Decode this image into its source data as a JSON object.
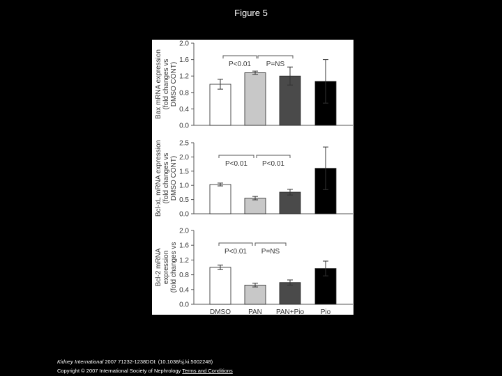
{
  "slide": {
    "title": "Figure 5",
    "citation": {
      "journal": "Kidney International",
      "rest": " 2007 71232-1238DOI: (10.1038/sj.ki.5002248)"
    },
    "copyright": "Copyright © 2007 International Society of Nephrology",
    "link": "Terms and Conditions"
  },
  "chart_data": [
    {
      "type": "bar",
      "ylabel": [
        "Bax mRNA expression",
        "(fold changes vs",
        "DMSO CONT)"
      ],
      "categories": [
        null,
        null,
        null,
        null
      ],
      "values": [
        1.0,
        1.28,
        1.2,
        1.07
      ],
      "errors": [
        0.12,
        0.04,
        0.22,
        0.53
      ],
      "colors": [
        "#ffffff",
        "#c8c8c8",
        "#4a4a4a",
        "#000000"
      ],
      "ylim": [
        0,
        2
      ],
      "yticks": [
        {
          "value": 0,
          "label": "0.0"
        },
        0.4,
        0.8,
        1.2,
        1.6,
        {
          "value": 2,
          "label": "2.0"
        }
      ],
      "annotations": [
        "P<0.01",
        "P=NS"
      ]
    },
    {
      "type": "bar",
      "ylabel": [
        "Bcl-xL mRNA expression",
        "(fold changes vs",
        "DMSO CONT)"
      ],
      "categories": [
        null,
        null,
        null,
        null
      ],
      "values": [
        1.03,
        0.55,
        0.76,
        1.6
      ],
      "errors": [
        0.05,
        0.06,
        0.1,
        0.75
      ],
      "colors": [
        "#ffffff",
        "#c8c8c8",
        "#4a4a4a",
        "#000000"
      ],
      "ylim": [
        0,
        2.5
      ],
      "yticks": [
        {
          "value": 0,
          "label": "0.0"
        },
        0.5,
        {
          "value": 1,
          "label": "1.0"
        },
        1.5,
        {
          "value": 2,
          "label": "2.0"
        },
        2.5
      ],
      "annotations": [
        "P<0.01",
        "P<0.01"
      ]
    },
    {
      "type": "bar",
      "ylabel": [
        "Bcl-2 mRNA",
        "expression",
        "(fold changes vs"
      ],
      "categories": [
        "DMSO",
        "PAN",
        "PAN+Pio",
        "Pio"
      ],
      "values": [
        1.0,
        0.52,
        0.59,
        0.97
      ],
      "errors": [
        0.06,
        0.05,
        0.07,
        0.2
      ],
      "colors": [
        "#ffffff",
        "#c8c8c8",
        "#4a4a4a",
        "#000000"
      ],
      "ylim": [
        0,
        2
      ],
      "yticks": [
        {
          "value": 0,
          "label": "0.0"
        },
        0.4,
        0.8,
        1.2,
        1.6,
        {
          "value": 2,
          "label": "2.0"
        }
      ],
      "annotations": [
        "P<0.01",
        "P=NS"
      ]
    }
  ]
}
